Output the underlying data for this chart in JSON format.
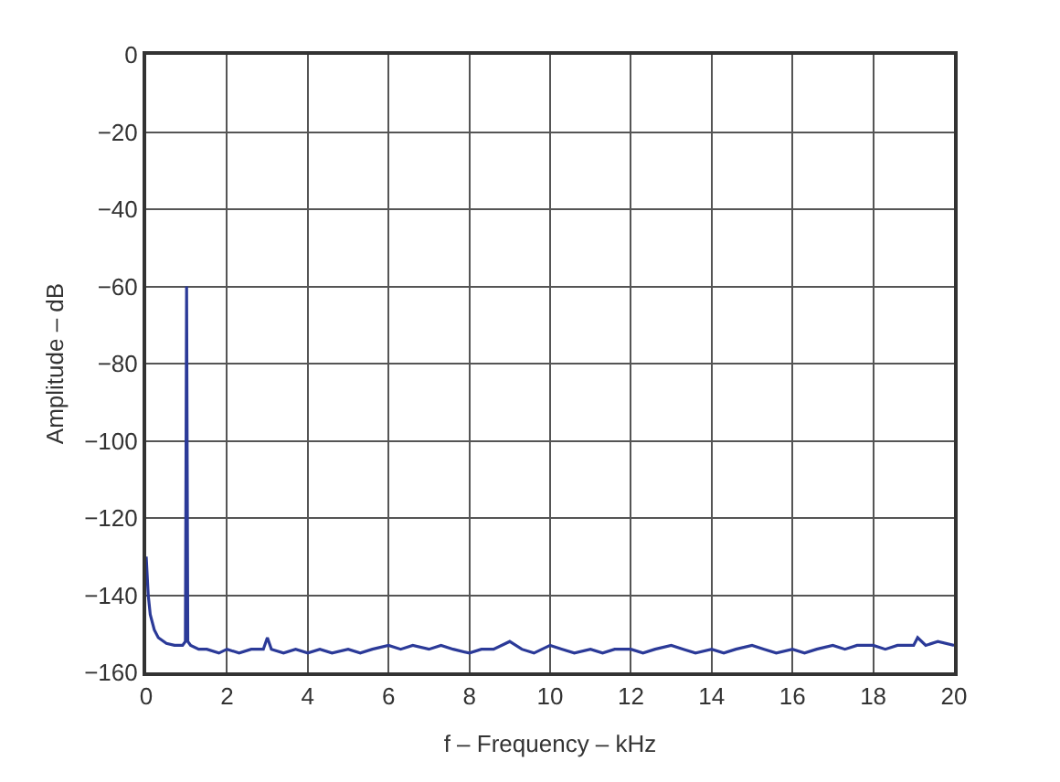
{
  "chart_data": {
    "type": "line",
    "xlabel": "f – Frequency – kHz",
    "ylabel": "Amplitude – dB",
    "x": [
      0,
      0.05,
      0.1,
      0.2,
      0.3,
      0.5,
      0.7,
      0.9,
      0.97,
      1.0,
      1.03,
      1.1,
      1.3,
      1.5,
      1.8,
      2.0,
      2.3,
      2.6,
      2.9,
      3.0,
      3.1,
      3.4,
      3.7,
      4.0,
      4.3,
      4.6,
      5.0,
      5.3,
      5.6,
      6.0,
      6.3,
      6.6,
      7.0,
      7.3,
      7.6,
      8.0,
      8.3,
      8.6,
      9.0,
      9.3,
      9.6,
      10.0,
      10.3,
      10.6,
      11.0,
      11.3,
      11.6,
      12.0,
      12.3,
      12.6,
      13.0,
      13.3,
      13.6,
      14.0,
      14.3,
      14.6,
      15.0,
      15.3,
      15.6,
      16.0,
      16.3,
      16.6,
      17.0,
      17.3,
      17.6,
      18.0,
      18.3,
      18.6,
      19.0,
      19.1,
      19.3,
      19.6,
      20.0
    ],
    "series": [
      {
        "color": "#2b3a98",
        "values": [
          -130,
          -140,
          -145,
          -149,
          -151,
          -152.5,
          -153,
          -153,
          -152,
          -60,
          -152,
          -153,
          -154,
          -154,
          -155,
          -154,
          -155,
          -154,
          -154,
          -151,
          -154,
          -155,
          -154,
          -155,
          -154,
          -155,
          -154,
          -155,
          -154,
          -153,
          -154,
          -153,
          -154,
          -153,
          -154,
          -155,
          -154,
          -154,
          -152,
          -154,
          -155,
          -153,
          -154,
          -155,
          -154,
          -155,
          -154,
          -154,
          -155,
          -154,
          -153,
          -154,
          -155,
          -154,
          -155,
          -154,
          -153,
          -154,
          -155,
          -154,
          -155,
          -154,
          -153,
          -154,
          -153,
          -153,
          -154,
          -153,
          -153,
          -151,
          -153,
          -152,
          -153
        ]
      }
    ],
    "xlim": [
      0,
      20
    ],
    "ylim": [
      -160,
      0
    ],
    "xticks": [
      0,
      2,
      4,
      6,
      8,
      10,
      12,
      14,
      16,
      18,
      20
    ],
    "yticks": [
      0,
      -20,
      -40,
      -60,
      -80,
      -100,
      -120,
      -140,
      -160
    ],
    "grid": true,
    "legend": false,
    "marker": "none",
    "line_style": "solid"
  }
}
